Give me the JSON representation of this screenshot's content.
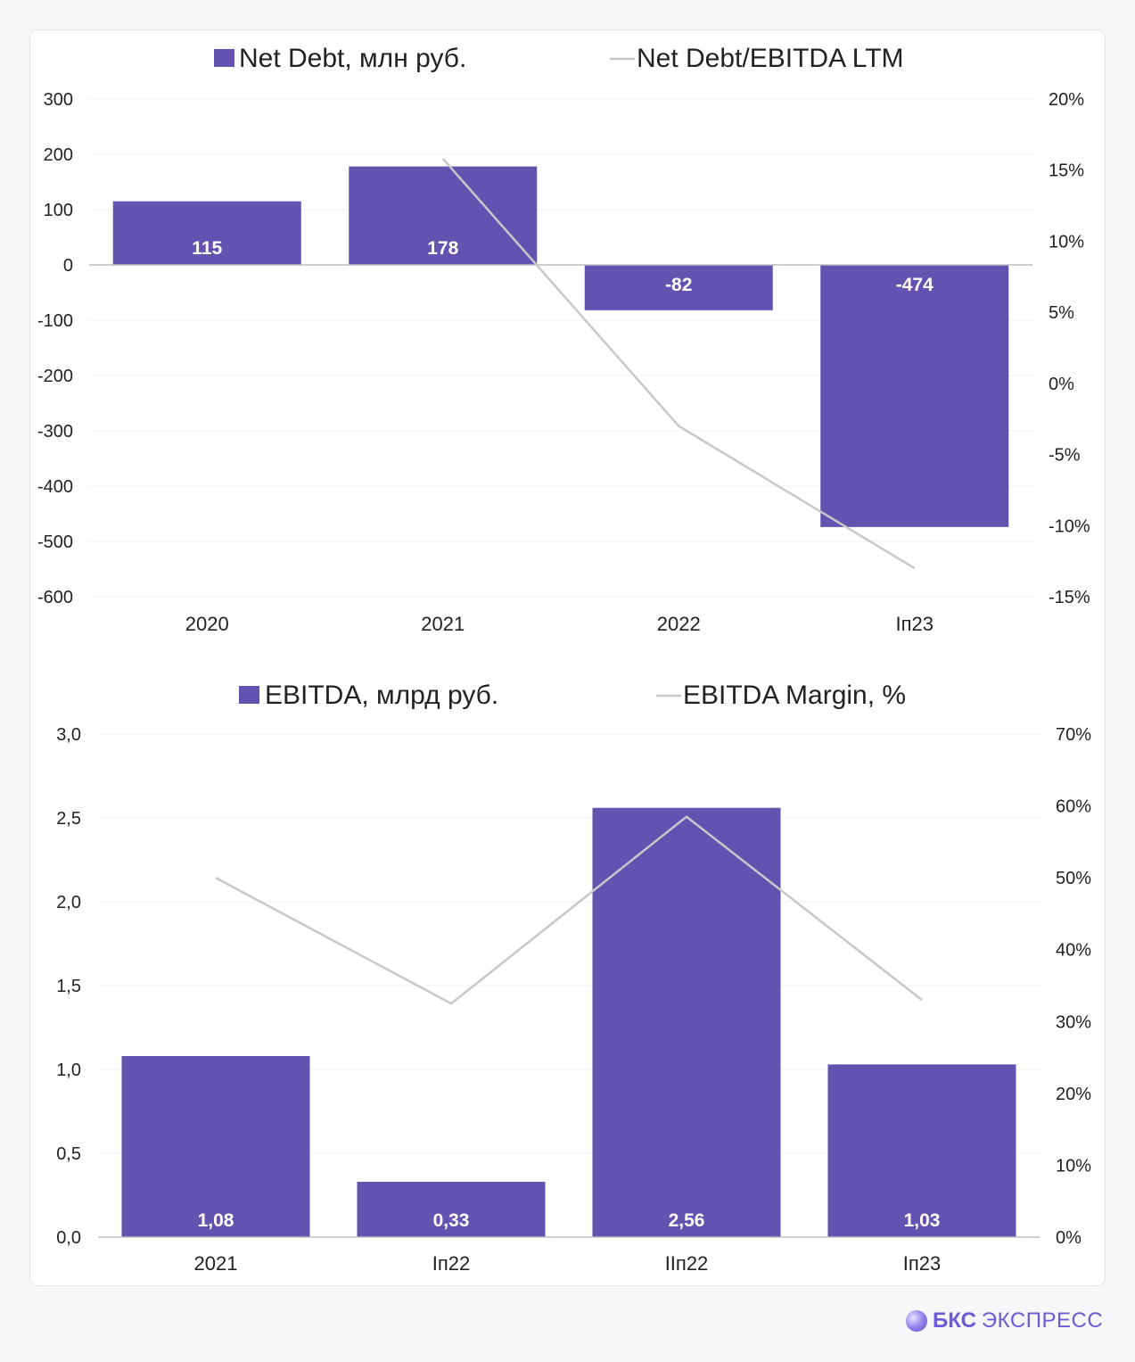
{
  "chart_data": [
    {
      "type": "bar",
      "categories": [
        "2020",
        "2021",
        "2022",
        "Iп23"
      ],
      "series": [
        {
          "name": "Net Debt, млн руб.",
          "kind": "bar",
          "axis": "left",
          "values": [
            115,
            178,
            -82,
            -474
          ],
          "labels": [
            "115",
            "178",
            "-82",
            "-474"
          ]
        },
        {
          "name": "Net Debt/EBITDA LTM",
          "kind": "line",
          "axis": "right",
          "values": [
            null,
            15.8,
            -3,
            -13
          ]
        }
      ],
      "ylim": [
        -600,
        300
      ],
      "y_ticks": [
        "300",
        "200",
        "100",
        "0",
        "-100",
        "-200",
        "-300",
        "-400",
        "-500",
        "-600"
      ],
      "y2lim": [
        -15,
        20
      ],
      "y2_ticks": [
        "20%",
        "15%",
        "10%",
        "5%",
        "0%",
        "-5%",
        "-10%",
        "-15%"
      ],
      "legend_position": "top",
      "grid": true
    },
    {
      "type": "bar",
      "categories": [
        "2021",
        "Iп22",
        "IIп22",
        "Iп23"
      ],
      "series": [
        {
          "name": "EBITDA, млрд руб.",
          "kind": "bar",
          "axis": "left",
          "values": [
            1.08,
            0.33,
            2.56,
            1.03
          ],
          "labels": [
            "1,08",
            "0,33",
            "2,56",
            "1,03"
          ]
        },
        {
          "name": "EBITDA Margin, %",
          "kind": "line",
          "axis": "right",
          "values": [
            50,
            32.5,
            58.5,
            33
          ]
        }
      ],
      "ylim": [
        0,
        3
      ],
      "y_ticks": [
        "3,0",
        "2,5",
        "2,0",
        "1,5",
        "1,0",
        "0,5",
        "0,0"
      ],
      "y2lim": [
        0,
        70
      ],
      "y2_ticks": [
        "70%",
        "60%",
        "50%",
        "40%",
        "30%",
        "20%",
        "10%",
        "0%"
      ],
      "legend_position": "top",
      "grid": true
    }
  ],
  "colors": {
    "bar": "#6452b0",
    "line": "#c8c8c8",
    "grid": "#f0f0f0",
    "axis": "#bdbdbd",
    "text": "#222222",
    "bar_label": "#ffffff",
    "brand": "#6e5ad6"
  },
  "brand": {
    "name": "БКС",
    "sub": "ЭКСПРЕСС"
  }
}
